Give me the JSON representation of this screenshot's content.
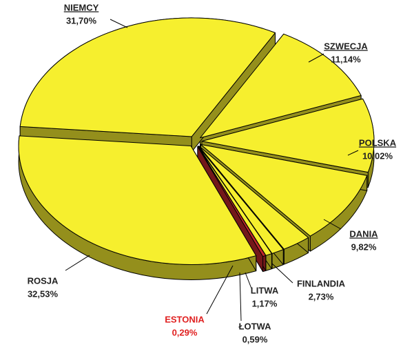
{
  "chart_data": {
    "type": "pie",
    "categories": [
      "SZWECJA",
      "POLSKA",
      "DANIA",
      "FINLANDIA",
      "LITWA",
      "ŁOTWA",
      "ESTONIA",
      "ROSJA",
      "NIEMCY"
    ],
    "values": [
      11.14,
      10.02,
      9.82,
      2.73,
      1.17,
      0.59,
      0.29,
      32.53,
      31.7
    ],
    "value_labels": [
      "11,14%",
      "10,02%",
      "9,82%",
      "2,73%",
      "1,17%",
      "0,59%",
      "0,29%",
      "32,53%",
      "31,70%"
    ],
    "colors": [
      "#f6ef2e",
      "#f6ef2e",
      "#f6ef2e",
      "#f6ef2e",
      "#f6ef2e",
      "#f6ef2e",
      "#c0282c",
      "#f6ef2e",
      "#f6ef2e"
    ],
    "label_colors": [
      "#222222",
      "#222222",
      "#222222",
      "#222222",
      "#222222",
      "#222222",
      "#e02020",
      "#222222",
      "#222222"
    ]
  }
}
